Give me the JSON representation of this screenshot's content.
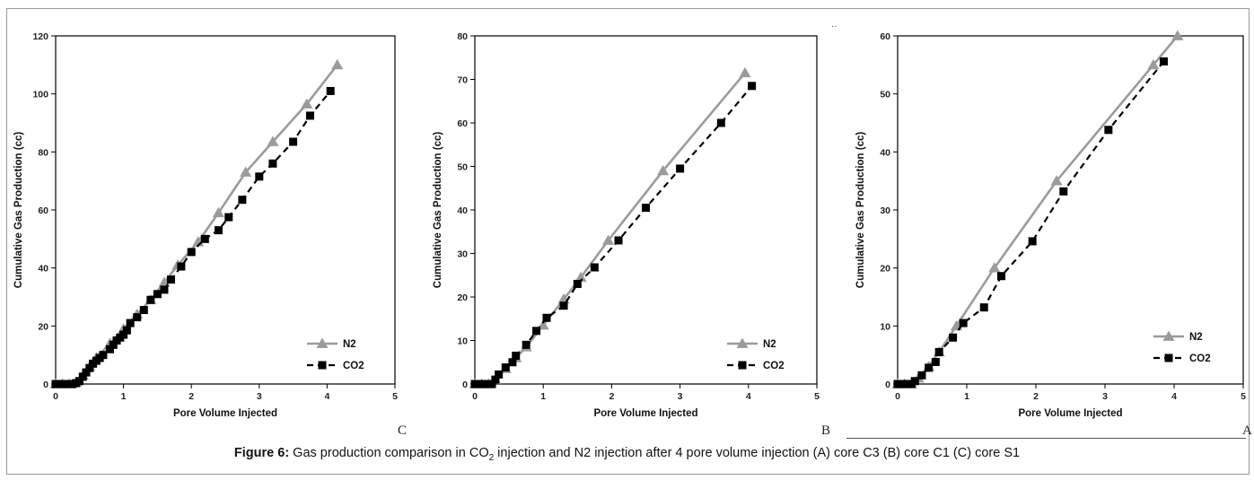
{
  "figure": {
    "caption_label": "Figure 6:",
    "caption_text_1": " Gas production comparison in CO",
    "caption_sub": "2",
    "caption_text_2": " injection and N2 injection after 4 pore volume injection (A) core C3 (B) core C1 (C) core S1",
    "colors": {
      "n2": "#9b9b9b",
      "co2": "#000000",
      "axis": "#000000",
      "rule": "#555555"
    }
  },
  "chart_data": [
    {
      "type": "line",
      "panel_letter": "C",
      "xlabel": "Pore Volume Injected",
      "ylabel": "Cumulative Gas Production (cc)",
      "xlim": [
        0,
        5
      ],
      "ylim": [
        0,
        120
      ],
      "xticks": [
        "0",
        "1",
        "2",
        "3",
        "4",
        "5"
      ],
      "yticks": [
        "0",
        "20",
        "40",
        "60",
        "80",
        "100",
        "120"
      ],
      "legend_position": "bottom-right",
      "grid": false,
      "series": [
        {
          "name": "N2",
          "style": "solid",
          "marker": "triangle",
          "x": [
            0,
            0.1,
            0.2,
            0.3,
            0.4,
            0.5,
            0.6,
            0.8,
            1.0,
            1.2,
            1.4,
            1.6,
            1.8,
            2.1,
            2.4,
            2.8,
            3.2,
            3.7,
            4.15
          ],
          "y": [
            0,
            0,
            0,
            0.5,
            3,
            6,
            9,
            14,
            19,
            24,
            29,
            35,
            41,
            49,
            59,
            73,
            83.5,
            96.5,
            110
          ]
        },
        {
          "name": "CO2",
          "style": "dashed",
          "marker": "square",
          "x": [
            0,
            0.05,
            0.1,
            0.15,
            0.2,
            0.25,
            0.3,
            0.35,
            0.4,
            0.45,
            0.5,
            0.55,
            0.6,
            0.65,
            0.7,
            0.8,
            0.85,
            0.9,
            0.95,
            1.0,
            1.05,
            1.1,
            1.2,
            1.3,
            1.4,
            1.5,
            1.6,
            1.7,
            1.85,
            2.0,
            2.2,
            2.4,
            2.55,
            2.75,
            3.0,
            3.2,
            3.5,
            3.75,
            4.05
          ],
          "y": [
            0,
            0,
            0,
            0,
            0,
            0,
            0.3,
            1,
            2.5,
            4,
            5.5,
            7,
            8,
            9,
            10,
            12,
            13.5,
            15,
            16,
            17,
            18.5,
            21,
            23,
            25.5,
            29,
            31,
            32.5,
            36,
            40.5,
            45.5,
            50,
            53,
            57.5,
            63.5,
            71.5,
            76,
            83.5,
            92.5,
            101
          ]
        }
      ]
    },
    {
      "type": "line",
      "panel_letter": "B",
      "xlabel": "Pore Volume Injected",
      "ylabel": "Cumulative Gas Production (cc)",
      "xlim": [
        0,
        5
      ],
      "ylim": [
        0,
        80
      ],
      "xticks": [
        "0",
        "1",
        "2",
        "3",
        "4",
        "5"
      ],
      "yticks": [
        "0",
        "10",
        "20",
        "30",
        "40",
        "50",
        "60",
        "70",
        "80"
      ],
      "legend_position": "bottom-right",
      "grid": false,
      "series": [
        {
          "name": "N2",
          "style": "solid",
          "marker": "triangle",
          "x": [
            0,
            0.1,
            0.2,
            0.3,
            0.45,
            0.6,
            0.75,
            1.0,
            1.3,
            1.55,
            1.95,
            2.75,
            3.95
          ],
          "y": [
            0,
            0,
            0,
            1,
            3.5,
            6,
            8.5,
            13.5,
            19.5,
            24.5,
            33,
            49,
            71.5
          ]
        },
        {
          "name": "CO2",
          "style": "dashed",
          "marker": "square",
          "x": [
            0,
            0.05,
            0.1,
            0.15,
            0.2,
            0.25,
            0.3,
            0.35,
            0.45,
            0.55,
            0.6,
            0.75,
            0.9,
            1.05,
            1.3,
            1.5,
            1.75,
            2.1,
            2.5,
            3.0,
            3.6,
            4.05
          ],
          "y": [
            0,
            0,
            0,
            0,
            0,
            0,
            1,
            2.2,
            3.8,
            5,
            6.5,
            9,
            12.2,
            15.2,
            18,
            23,
            26.8,
            33,
            40.5,
            49.5,
            60,
            68.5
          ]
        }
      ]
    },
    {
      "type": "line",
      "panel_letter": "A",
      "xlabel": "Pore Volume Injected",
      "ylabel": "Cumulative Gas Production (cc)",
      "xlim": [
        0,
        5
      ],
      "ylim": [
        0,
        60
      ],
      "xticks": [
        "0",
        "1",
        "2",
        "3",
        "4",
        "5"
      ],
      "yticks": [
        "0",
        "10",
        "20",
        "30",
        "40",
        "50",
        "60"
      ],
      "legend_position": "bottom-right",
      "grid": false,
      "series": [
        {
          "name": "N2",
          "style": "solid",
          "marker": "triangle",
          "x": [
            0,
            0.1,
            0.2,
            0.3,
            0.45,
            0.6,
            0.85,
            1.4,
            2.3,
            3.7,
            4.05
          ],
          "y": [
            0,
            0,
            0,
            1,
            3,
            5.5,
            10,
            20,
            35,
            55,
            60
          ]
        },
        {
          "name": "CO2",
          "style": "dashed",
          "marker": "square",
          "x": [
            0,
            0.05,
            0.1,
            0.15,
            0.2,
            0.25,
            0.35,
            0.45,
            0.55,
            0.6,
            0.8,
            0.95,
            1.25,
            1.5,
            1.95,
            2.4,
            3.05,
            3.85
          ],
          "y": [
            0,
            0,
            0,
            0,
            0,
            0.5,
            1.5,
            2.8,
            3.8,
            5.5,
            8,
            10.5,
            13.2,
            18.6,
            24.6,
            33.2,
            43.8,
            55.6
          ]
        }
      ]
    }
  ]
}
